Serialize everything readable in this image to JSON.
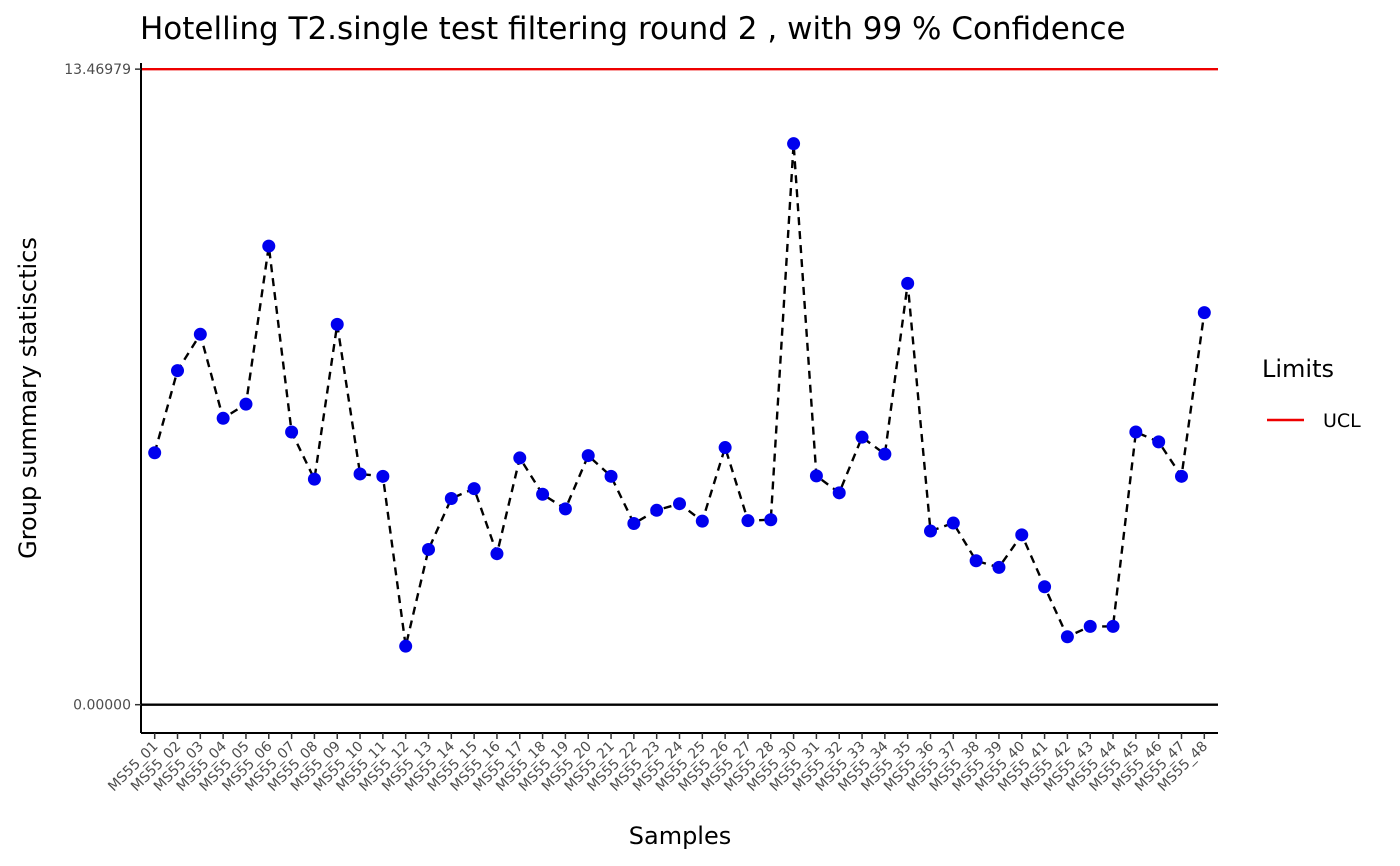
{
  "chart_data": {
    "type": "line",
    "title": "Hotelling  T2.single  test filtering round  2 , with  99 % Confidence",
    "xlabel": "Samples",
    "ylabel": "Group summary statisctics",
    "ylim": [
      -0.6,
      13.6
    ],
    "yticks": [
      0,
      13.46979
    ],
    "ytick_labels": [
      "0.00000",
      "13.46979"
    ],
    "categories": [
      "MS55_01",
      "MS55_02",
      "MS55_03",
      "MS55_04",
      "MS55_05",
      "MS55_06",
      "MS55_07",
      "MS55_08",
      "MS55_09",
      "MS55_10",
      "MS55_11",
      "MS55_12",
      "MS55_13",
      "MS55_14",
      "MS55_15",
      "MS55_16",
      "MS55_17",
      "MS55_18",
      "MS55_19",
      "MS55_20",
      "MS55_21",
      "MS55_22",
      "MS55_23",
      "MS55_24",
      "MS55_25",
      "MS55_26",
      "MS55_27",
      "MS55_28",
      "MS55_30",
      "MS55_31",
      "MS55_32",
      "MS55_33",
      "MS55_34",
      "MS55_35",
      "MS55_36",
      "MS55_37",
      "MS55_38",
      "MS55_39",
      "MS55_40",
      "MS55_41",
      "MS55_42",
      "MS55_43",
      "MS55_44",
      "MS55_45",
      "MS55_46",
      "MS55_47",
      "MS55_48"
    ],
    "series": [
      {
        "values": [
          5.34,
          7.08,
          7.85,
          6.07,
          6.37,
          9.72,
          5.78,
          4.78,
          8.06,
          4.89,
          4.84,
          1.24,
          3.29,
          4.37,
          4.58,
          3.2,
          5.23,
          4.46,
          4.15,
          5.28,
          4.84,
          3.84,
          4.12,
          4.26,
          3.89,
          5.45,
          3.9,
          3.92,
          11.89,
          4.85,
          4.49,
          5.67,
          5.31,
          8.93,
          3.68,
          3.85,
          3.05,
          2.91,
          3.6,
          2.5,
          1.44,
          1.66,
          1.66,
          5.78,
          5.57,
          4.84,
          8.31
        ],
        "color": "#0000ee",
        "line_color": "#000000",
        "line_style": "dashed"
      }
    ],
    "hlines": [
      {
        "name": "UCL",
        "value": 13.46979,
        "color": "#ee0000"
      },
      {
        "name": "",
        "value": 0,
        "color": "#000000"
      }
    ],
    "legend": {
      "title": "Limits",
      "placement": "right",
      "items": [
        {
          "label": "UCL",
          "color": "#ee0000"
        }
      ]
    },
    "grid": false
  }
}
